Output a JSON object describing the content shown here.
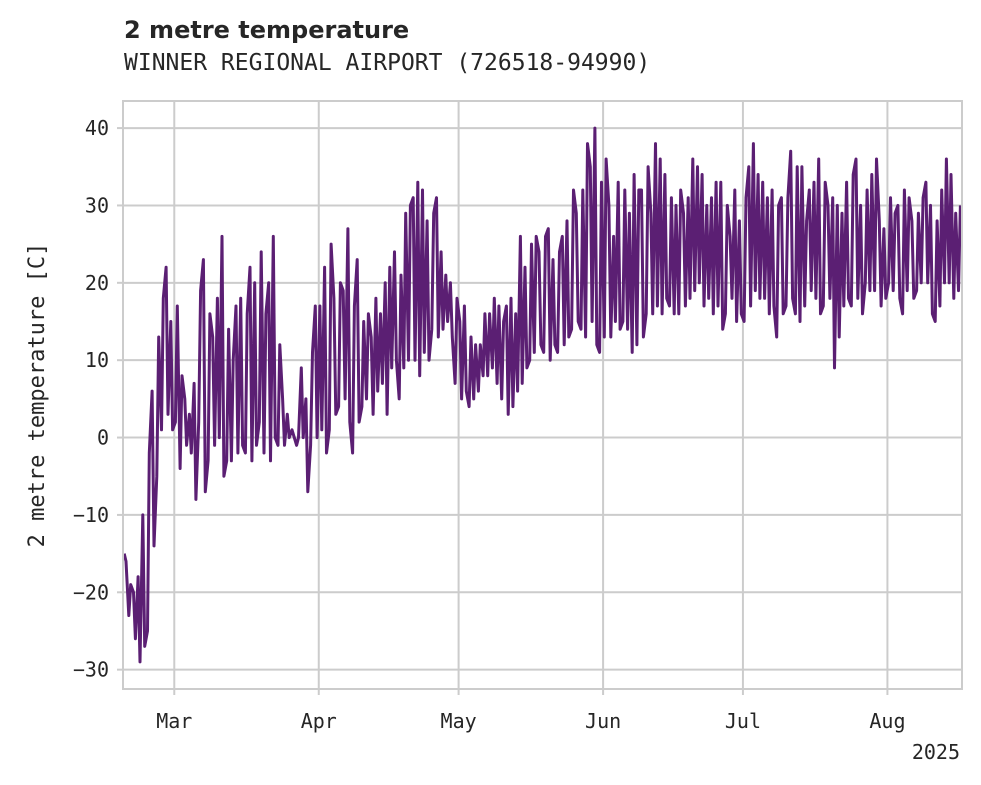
{
  "chart_data": {
    "type": "line",
    "title": "2 metre temperature",
    "subtitle": "WINNER REGIONAL AIRPORT (726518-94990)",
    "xlabel": "",
    "ylabel": "2 metre temperature [C]",
    "xlim": [
      "2025-02-18",
      "2025-08-17"
    ],
    "ylim": [
      -32.5,
      43.5
    ],
    "x_ticks": [
      {
        "date": "2025-03-01",
        "label": "Mar"
      },
      {
        "date": "2025-04-01",
        "label": "Apr"
      },
      {
        "date": "2025-05-01",
        "label": "May"
      },
      {
        "date": "2025-06-01",
        "label": "Jun"
      },
      {
        "date": "2025-07-01",
        "label": "Jul"
      },
      {
        "date": "2025-08-01",
        "label": "Aug"
      }
    ],
    "x_offset_label": "2025",
    "y_ticks": [
      -30,
      -20,
      -10,
      0,
      10,
      20,
      30,
      40
    ],
    "grid": true,
    "line_color": "#5b1f73",
    "series": [
      {
        "name": "",
        "x": [
          "2025-02-18",
          "2025-02-19",
          "2025-02-20",
          "2025-02-21",
          "2025-02-22",
          "2025-02-23",
          "2025-02-24",
          "2025-02-25",
          "2025-02-26",
          "2025-02-27",
          "2025-02-28",
          "2025-03-01",
          "2025-03-02",
          "2025-03-03",
          "2025-03-04",
          "2025-03-05",
          "2025-03-06",
          "2025-03-07",
          "2025-03-08",
          "2025-03-09",
          "2025-03-10",
          "2025-03-11",
          "2025-03-12",
          "2025-03-13",
          "2025-03-14",
          "2025-03-15",
          "2025-03-16",
          "2025-03-17",
          "2025-03-18",
          "2025-03-19",
          "2025-03-20",
          "2025-03-21",
          "2025-03-22",
          "2025-03-23",
          "2025-03-24",
          "2025-03-25",
          "2025-03-26",
          "2025-03-27",
          "2025-03-28",
          "2025-03-29",
          "2025-03-30",
          "2025-03-31",
          "2025-04-01",
          "2025-04-02",
          "2025-04-03",
          "2025-04-04",
          "2025-04-05",
          "2025-04-06",
          "2025-04-07",
          "2025-04-08",
          "2025-04-09",
          "2025-04-10",
          "2025-04-11",
          "2025-04-12",
          "2025-04-13",
          "2025-04-14",
          "2025-04-15",
          "2025-04-16",
          "2025-04-17",
          "2025-04-18",
          "2025-04-19",
          "2025-04-20",
          "2025-04-21",
          "2025-04-22",
          "2025-04-23",
          "2025-04-24",
          "2025-04-25",
          "2025-04-26",
          "2025-04-27",
          "2025-04-28",
          "2025-04-29",
          "2025-04-30",
          "2025-05-01",
          "2025-05-02",
          "2025-05-03",
          "2025-05-04",
          "2025-05-05",
          "2025-05-06",
          "2025-05-07",
          "2025-05-08",
          "2025-05-09",
          "2025-05-10",
          "2025-05-11",
          "2025-05-12",
          "2025-05-13",
          "2025-05-14",
          "2025-05-15",
          "2025-05-16",
          "2025-05-17",
          "2025-05-18",
          "2025-05-19",
          "2025-05-20",
          "2025-05-21",
          "2025-05-22",
          "2025-05-23",
          "2025-05-24",
          "2025-05-25",
          "2025-05-26",
          "2025-05-27",
          "2025-05-28",
          "2025-05-29",
          "2025-05-30",
          "2025-05-31",
          "2025-06-01",
          "2025-06-02",
          "2025-06-03",
          "2025-06-04",
          "2025-06-05",
          "2025-06-06",
          "2025-06-07",
          "2025-06-08",
          "2025-06-09",
          "2025-06-10",
          "2025-06-11",
          "2025-06-12",
          "2025-06-13",
          "2025-06-14",
          "2025-06-15",
          "2025-06-16",
          "2025-06-17",
          "2025-06-18",
          "2025-06-19",
          "2025-06-20",
          "2025-06-21",
          "2025-06-22",
          "2025-06-23",
          "2025-06-24",
          "2025-06-25",
          "2025-06-26",
          "2025-06-27",
          "2025-06-28",
          "2025-06-29",
          "2025-06-30",
          "2025-07-01",
          "2025-07-02",
          "2025-07-03",
          "2025-07-04",
          "2025-07-05",
          "2025-07-06",
          "2025-07-07",
          "2025-07-08",
          "2025-07-09",
          "2025-07-10",
          "2025-07-11",
          "2025-07-12",
          "2025-07-13",
          "2025-07-14",
          "2025-07-15",
          "2025-07-16",
          "2025-07-17",
          "2025-07-18",
          "2025-07-19",
          "2025-07-20",
          "2025-07-21",
          "2025-07-22",
          "2025-07-23",
          "2025-07-24",
          "2025-07-25",
          "2025-07-26",
          "2025-07-27",
          "2025-07-28",
          "2025-07-29",
          "2025-07-30",
          "2025-07-31",
          "2025-08-01",
          "2025-08-02",
          "2025-08-03",
          "2025-08-04",
          "2025-08-05",
          "2025-08-06",
          "2025-08-07",
          "2025-08-08",
          "2025-08-09",
          "2025-08-10",
          "2025-08-11",
          "2025-08-12",
          "2025-08-13",
          "2025-08-14",
          "2025-08-15",
          "2025-08-16"
        ],
        "min": [
          -16,
          -23,
          -26,
          -29,
          -27,
          -25,
          -14,
          -5,
          1,
          3,
          1,
          2,
          -4,
          -1,
          -2,
          -8,
          2,
          -7,
          -3,
          -1,
          0,
          -5,
          -3,
          -3,
          -2,
          -1,
          -2,
          -3,
          -1,
          2,
          -2,
          -3,
          0,
          -1,
          -1,
          0,
          1,
          -1,
          0,
          -7,
          -1,
          0,
          1,
          -2,
          1,
          3,
          4,
          5,
          2,
          -2,
          2,
          4,
          5,
          3,
          6,
          7,
          3,
          9,
          10,
          5,
          9,
          10,
          10,
          8,
          11,
          10,
          14,
          13,
          14,
          15,
          13,
          7,
          5,
          6,
          4,
          5,
          6,
          8,
          8,
          9,
          7,
          5,
          3,
          4,
          6,
          7,
          9,
          10,
          11,
          12,
          11,
          10,
          12,
          11,
          12,
          13,
          14,
          15,
          14,
          13,
          15,
          12,
          11,
          13,
          13,
          15,
          14,
          15,
          14,
          11,
          12,
          13,
          16,
          16,
          17,
          16,
          18,
          17,
          16,
          16,
          17,
          18,
          19,
          20,
          17,
          18,
          16,
          17,
          14,
          16,
          18,
          15,
          16,
          15,
          17,
          19,
          18,
          18,
          16,
          17,
          13,
          16,
          17,
          18,
          16,
          15,
          17,
          19,
          18,
          16,
          17,
          18,
          9,
          13,
          17,
          18,
          17,
          18,
          16,
          20,
          19,
          19,
          17,
          18,
          20,
          19,
          18,
          16,
          19,
          18,
          19,
          20,
          20,
          16,
          15,
          17,
          20,
          20,
          18,
          19,
          19,
          14,
          19,
          21
        ],
        "max": [
          -15,
          -19,
          -20,
          -18,
          -10,
          -2,
          6,
          13,
          18,
          22,
          15,
          17,
          8,
          5,
          3,
          7,
          19,
          23,
          16,
          13,
          18,
          26,
          14,
          10,
          17,
          18,
          16,
          22,
          20,
          24,
          16,
          20,
          26,
          12,
          5,
          3,
          1,
          0,
          9,
          5,
          11,
          17,
          17,
          22,
          25,
          18,
          20,
          19,
          27,
          17,
          23,
          15,
          16,
          13,
          18,
          16,
          20,
          22,
          24,
          21,
          29,
          30,
          31,
          33,
          32,
          28,
          29,
          31,
          24,
          21,
          20,
          18,
          15,
          17,
          13,
          12,
          12,
          16,
          16,
          18,
          17,
          15,
          17,
          18,
          16,
          26,
          22,
          25,
          26,
          24,
          26,
          27,
          23,
          24,
          26,
          28,
          32,
          29,
          32,
          38,
          35,
          40,
          33,
          36,
          30,
          26,
          33,
          32,
          29,
          34,
          32,
          32,
          35,
          29,
          38,
          36,
          34,
          31,
          30,
          32,
          29,
          31,
          36,
          35,
          34,
          30,
          31,
          33,
          33,
          30,
          26,
          32,
          28,
          31,
          35,
          38,
          34,
          33,
          31,
          32,
          30,
          31,
          31,
          37,
          35,
          35,
          28,
          32,
          33,
          36,
          33,
          30,
          31,
          30,
          29,
          33,
          34,
          36,
          30,
          32,
          34,
          36,
          28,
          27,
          31,
          29,
          30,
          32,
          31,
          28,
          29,
          31,
          33,
          30,
          28,
          32,
          36,
          34,
          29,
          30
        ]
      }
    ]
  }
}
